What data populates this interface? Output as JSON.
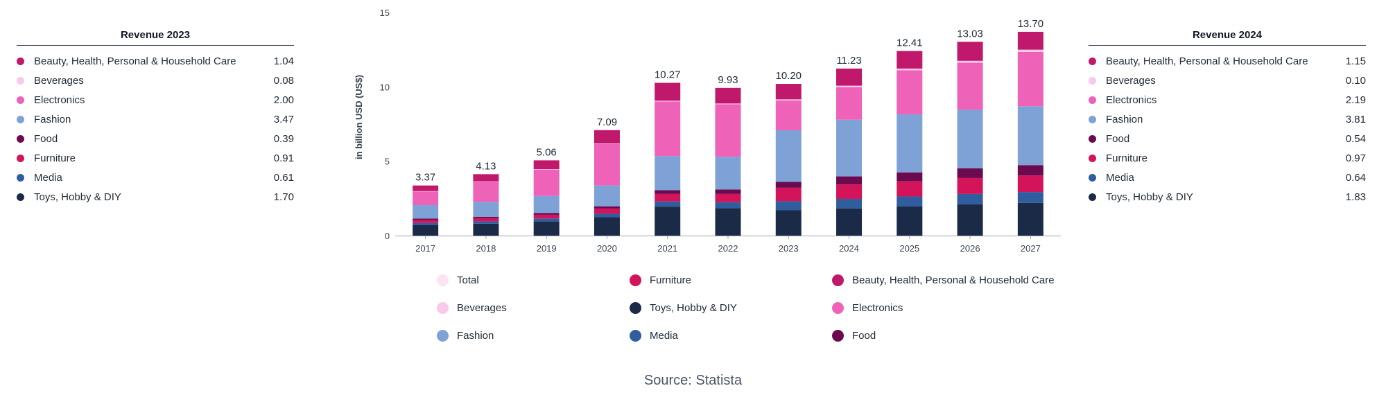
{
  "left_table": {
    "title": "Revenue 2023",
    "rows": [
      {
        "label": "Beauty, Health, Personal & Household Care",
        "value": "1.04",
        "color": "#c0186a"
      },
      {
        "label": "Beverages",
        "value": "0.08",
        "color": "#f8c9ea"
      },
      {
        "label": "Electronics",
        "value": "2.00",
        "color": "#ee62b8"
      },
      {
        "label": "Fashion",
        "value": "3.47",
        "color": "#7fa2d6"
      },
      {
        "label": "Food",
        "value": "0.39",
        "color": "#6c0a4f"
      },
      {
        "label": "Furniture",
        "value": "0.91",
        "color": "#d4145a"
      },
      {
        "label": "Media",
        "value": "0.61",
        "color": "#2f5d9e"
      },
      {
        "label": "Toys, Hobby & DIY",
        "value": "1.70",
        "color": "#1b2a47"
      }
    ]
  },
  "right_table": {
    "title": "Revenue 2024",
    "rows": [
      {
        "label": "Beauty, Health, Personal & Household Care",
        "value": "1.15",
        "color": "#c0186a"
      },
      {
        "label": "Beverages",
        "value": "0.10",
        "color": "#f8c9ea"
      },
      {
        "label": "Electronics",
        "value": "2.19",
        "color": "#ee62b8"
      },
      {
        "label": "Fashion",
        "value": "3.81",
        "color": "#7fa2d6"
      },
      {
        "label": "Food",
        "value": "0.54",
        "color": "#6c0a4f"
      },
      {
        "label": "Furniture",
        "value": "0.97",
        "color": "#d4145a"
      },
      {
        "label": "Media",
        "value": "0.64",
        "color": "#2f5d9e"
      },
      {
        "label": "Toys, Hobby & DIY",
        "value": "1.83",
        "color": "#1b2a47"
      }
    ]
  },
  "chart_data": {
    "type": "bar",
    "stacked": true,
    "ylabel": "in billion USD (US$)",
    "ylim": [
      0,
      15
    ],
    "yticks": [
      0,
      5,
      10,
      15
    ],
    "categories": [
      "2017",
      "2018",
      "2019",
      "2020",
      "2021",
      "2022",
      "2023",
      "2024",
      "2025",
      "2026",
      "2027"
    ],
    "totals": [
      3.37,
      4.13,
      5.06,
      7.09,
      10.27,
      9.93,
      10.2,
      11.23,
      12.41,
      13.03,
      13.7
    ],
    "total_labels": [
      "3.37",
      "4.13",
      "5.06",
      "7.09",
      "10.27",
      "9.93",
      "10.20",
      "11.23",
      "12.41",
      "13.03",
      "13.70"
    ],
    "series": [
      {
        "name": "Toys, Hobby & DIY",
        "color": "#1b2a47",
        "values": [
          0.7,
          0.8,
          0.95,
          1.25,
          1.95,
          1.85,
          1.7,
          1.83,
          1.96,
          2.1,
          2.2
        ]
      },
      {
        "name": "Media",
        "color": "#2f5d9e",
        "values": [
          0.15,
          0.16,
          0.2,
          0.22,
          0.35,
          0.4,
          0.61,
          0.64,
          0.67,
          0.7,
          0.73
        ]
      },
      {
        "name": "Furniture",
        "color": "#d4145a",
        "values": [
          0.2,
          0.21,
          0.25,
          0.35,
          0.5,
          0.55,
          0.91,
          0.97,
          1.02,
          1.07,
          1.11
        ]
      },
      {
        "name": "Food",
        "color": "#6c0a4f",
        "values": [
          0.1,
          0.1,
          0.12,
          0.15,
          0.25,
          0.3,
          0.39,
          0.54,
          0.6,
          0.65,
          0.7
        ]
      },
      {
        "name": "Fashion",
        "color": "#7fa2d6",
        "values": [
          0.9,
          1.0,
          1.15,
          1.4,
          2.3,
          2.2,
          3.47,
          3.81,
          3.9,
          3.94,
          3.96
        ]
      },
      {
        "name": "Electronics",
        "color": "#ee62b8",
        "values": [
          0.92,
          1.36,
          1.77,
          2.78,
          3.67,
          3.53,
          2.0,
          2.19,
          2.96,
          3.16,
          3.65
        ]
      },
      {
        "name": "Beverages",
        "color": "#f8c9ea",
        "values": [
          0.02,
          0.02,
          0.03,
          0.04,
          0.05,
          0.05,
          0.08,
          0.1,
          0.12,
          0.13,
          0.15
        ]
      },
      {
        "name": "Beauty, Health, Personal & Household Care",
        "color": "#c0186a",
        "values": [
          0.38,
          0.48,
          0.59,
          0.9,
          1.2,
          1.05,
          1.04,
          1.15,
          1.18,
          1.28,
          1.2
        ]
      }
    ]
  },
  "legend": {
    "items": [
      {
        "label": "Total",
        "color": "#fde3f4"
      },
      {
        "label": "Furniture",
        "color": "#d4145a"
      },
      {
        "label": "Beauty, Health, Personal & Household Care",
        "color": "#c0186a"
      },
      {
        "label": "Beverages",
        "color": "#f8c9ea"
      },
      {
        "label": "Toys, Hobby & DIY",
        "color": "#1b2a47"
      },
      {
        "label": "Electronics",
        "color": "#ee62b8"
      },
      {
        "label": "Fashion",
        "color": "#7fa2d6"
      },
      {
        "label": "Media",
        "color": "#2f5d9e"
      },
      {
        "label": "Food",
        "color": "#6c0a4f"
      }
    ]
  },
  "source": "Source: Statista"
}
